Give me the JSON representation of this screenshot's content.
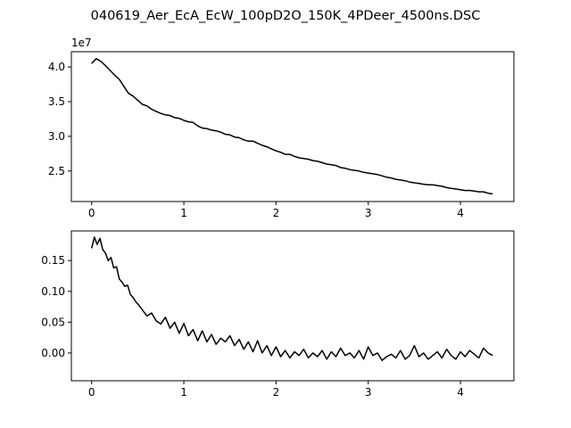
{
  "figure": {
    "title": "040619_Aer_EcA_EcW_100pD2O_150K_4PDeer_4500ns.DSC"
  },
  "chart_data": [
    {
      "type": "line",
      "xlim": [
        -0.22,
        4.58
      ],
      "ylim": [
        2.06,
        4.22
      ],
      "offset_text": "1e7",
      "xticks": [
        0,
        1,
        2,
        3,
        4
      ],
      "xtick_labels": [
        "0",
        "1",
        "2",
        "3",
        "4"
      ],
      "yticks": [
        2.5,
        3.0,
        3.5,
        4.0
      ],
      "ytick_labels": [
        "2.5",
        "3.0",
        "3.5",
        "4.0"
      ],
      "grid": false,
      "series": [
        {
          "color": "#000000",
          "x": [
            0.0,
            0.05,
            0.1,
            0.15,
            0.2,
            0.25,
            0.3,
            0.35,
            0.4,
            0.45,
            0.5,
            0.55,
            0.6,
            0.65,
            0.7,
            0.75,
            0.8,
            0.85,
            0.9,
            0.95,
            1.0,
            1.05,
            1.1,
            1.15,
            1.2,
            1.25,
            1.3,
            1.35,
            1.4,
            1.45,
            1.5,
            1.55,
            1.6,
            1.65,
            1.7,
            1.75,
            1.8,
            1.85,
            1.9,
            1.95,
            2.0,
            2.05,
            2.1,
            2.15,
            2.2,
            2.25,
            2.3,
            2.35,
            2.4,
            2.45,
            2.5,
            2.55,
            2.6,
            2.65,
            2.7,
            2.75,
            2.8,
            2.85,
            2.9,
            2.95,
            3.0,
            3.05,
            3.1,
            3.15,
            3.2,
            3.25,
            3.3,
            3.35,
            3.4,
            3.45,
            3.5,
            3.55,
            3.6,
            3.65,
            3.7,
            3.75,
            3.8,
            3.85,
            3.9,
            3.95,
            4.0,
            4.05,
            4.1,
            4.15,
            4.2,
            4.25,
            4.3,
            4.35
          ],
          "y": [
            4.05,
            4.12,
            4.08,
            4.02,
            3.95,
            3.88,
            3.82,
            3.72,
            3.62,
            3.58,
            3.52,
            3.46,
            3.44,
            3.39,
            3.36,
            3.33,
            3.31,
            3.3,
            3.27,
            3.26,
            3.23,
            3.21,
            3.2,
            3.15,
            3.12,
            3.11,
            3.09,
            3.08,
            3.06,
            3.03,
            3.02,
            2.99,
            2.98,
            2.95,
            2.93,
            2.93,
            2.9,
            2.87,
            2.85,
            2.82,
            2.79,
            2.77,
            2.74,
            2.74,
            2.71,
            2.69,
            2.68,
            2.67,
            2.65,
            2.64,
            2.62,
            2.6,
            2.59,
            2.58,
            2.55,
            2.54,
            2.52,
            2.51,
            2.5,
            2.48,
            2.47,
            2.46,
            2.45,
            2.43,
            2.41,
            2.4,
            2.38,
            2.37,
            2.36,
            2.34,
            2.33,
            2.32,
            2.31,
            2.3,
            2.3,
            2.29,
            2.28,
            2.26,
            2.25,
            2.24,
            2.23,
            2.22,
            2.22,
            2.21,
            2.2,
            2.2,
            2.18,
            2.17
          ]
        }
      ]
    },
    {
      "type": "line",
      "xlim": [
        -0.22,
        4.58
      ],
      "ylim": [
        -0.045,
        0.198
      ],
      "xticks": [
        0,
        1,
        2,
        3,
        4
      ],
      "xtick_labels": [
        "0",
        "1",
        "2",
        "3",
        "4"
      ],
      "yticks": [
        0.0,
        0.05,
        0.1,
        0.15
      ],
      "ytick_labels": [
        "0.00",
        "0.05",
        "0.10",
        "0.15"
      ],
      "grid": false,
      "series": [
        {
          "color": "#000000",
          "x": [
            0.0,
            0.03,
            0.06,
            0.09,
            0.12,
            0.15,
            0.18,
            0.21,
            0.24,
            0.27,
            0.3,
            0.33,
            0.36,
            0.39,
            0.42,
            0.45,
            0.48,
            0.51,
            0.54,
            0.57,
            0.6,
            0.65,
            0.7,
            0.75,
            0.8,
            0.85,
            0.9,
            0.95,
            1.0,
            1.05,
            1.1,
            1.15,
            1.2,
            1.25,
            1.3,
            1.35,
            1.4,
            1.45,
            1.5,
            1.55,
            1.6,
            1.65,
            1.7,
            1.75,
            1.8,
            1.85,
            1.9,
            1.95,
            2.0,
            2.05,
            2.1,
            2.15,
            2.2,
            2.25,
            2.3,
            2.35,
            2.4,
            2.45,
            2.5,
            2.55,
            2.6,
            2.65,
            2.7,
            2.75,
            2.8,
            2.85,
            2.9,
            2.95,
            3.0,
            3.05,
            3.1,
            3.15,
            3.2,
            3.25,
            3.3,
            3.35,
            3.4,
            3.45,
            3.5,
            3.55,
            3.6,
            3.65,
            3.7,
            3.75,
            3.8,
            3.85,
            3.9,
            3.95,
            4.0,
            4.05,
            4.1,
            4.15,
            4.2,
            4.25,
            4.3,
            4.35
          ],
          "y": [
            0.17,
            0.188,
            0.176,
            0.186,
            0.168,
            0.162,
            0.15,
            0.155,
            0.138,
            0.14,
            0.12,
            0.115,
            0.108,
            0.11,
            0.095,
            0.09,
            0.083,
            0.078,
            0.072,
            0.066,
            0.06,
            0.065,
            0.052,
            0.047,
            0.058,
            0.04,
            0.05,
            0.032,
            0.048,
            0.028,
            0.038,
            0.02,
            0.036,
            0.018,
            0.03,
            0.014,
            0.024,
            0.018,
            0.028,
            0.012,
            0.022,
            0.006,
            0.018,
            0.002,
            0.02,
            0.0,
            0.012,
            -0.004,
            0.01,
            -0.006,
            0.004,
            -0.008,
            0.002,
            -0.004,
            0.006,
            -0.008,
            0.0,
            -0.006,
            0.004,
            -0.01,
            0.002,
            -0.006,
            0.008,
            -0.004,
            0.0,
            -0.008,
            0.004,
            -0.01,
            0.01,
            -0.004,
            0.0,
            -0.012,
            -0.006,
            -0.002,
            -0.008,
            0.004,
            -0.01,
            -0.004,
            0.012,
            -0.006,
            0.0,
            -0.01,
            -0.004,
            0.002,
            -0.008,
            0.006,
            -0.004,
            -0.01,
            0.002,
            -0.006,
            0.004,
            -0.002,
            -0.008,
            0.008,
            0.0,
            -0.004
          ]
        }
      ]
    }
  ]
}
